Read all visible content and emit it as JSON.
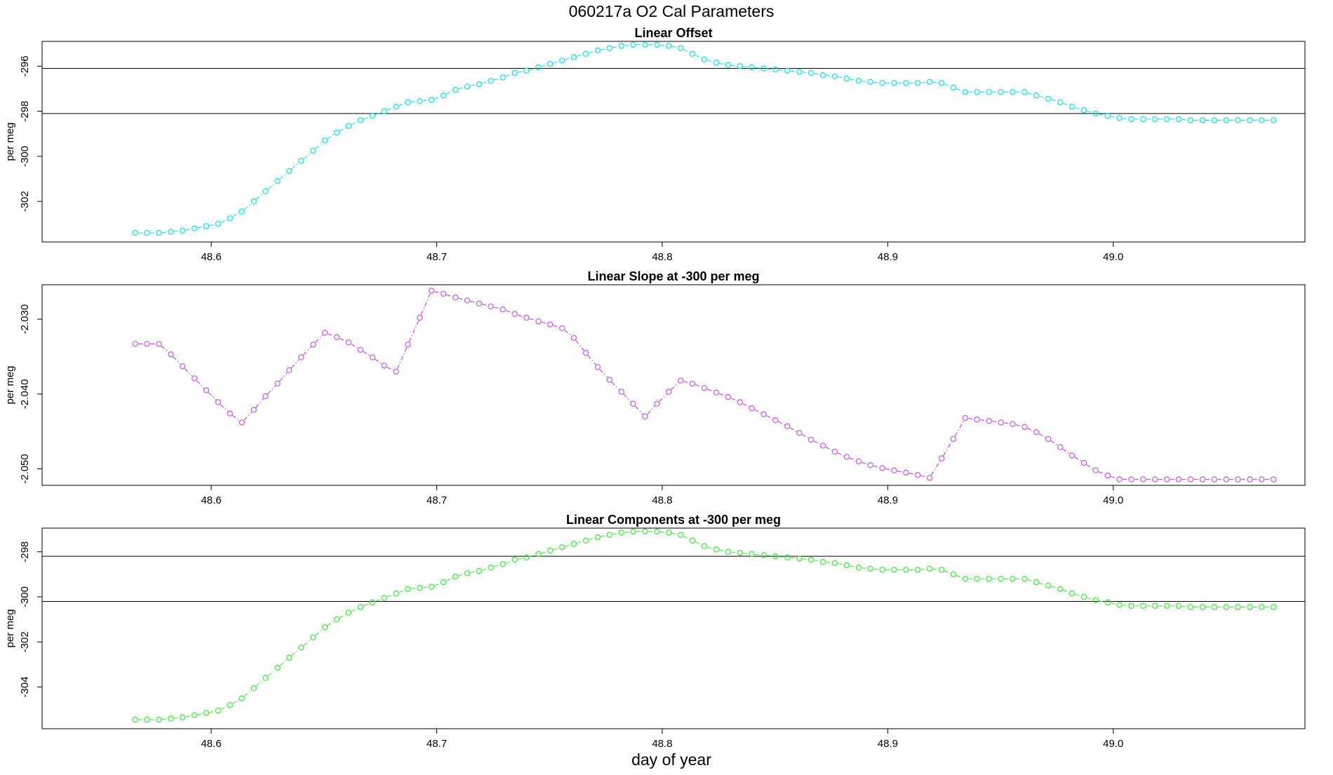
{
  "title": "060217a   O2 Cal Parameters",
  "xlabel": "day of year",
  "chart_data": [
    {
      "type": "scatter",
      "title": "Linear Offset",
      "ylabel": "per meg",
      "color": "#00e5ee",
      "connected": false,
      "xlim": [
        48.525,
        49.085
      ],
      "ylim": [
        -303.8,
        -294.9
      ],
      "xticks": [
        "48.6",
        "48.7",
        "48.8",
        "48.9",
        "49.0"
      ],
      "yticks": [
        "-296",
        "-298",
        "-300",
        "-302"
      ],
      "hlines": [
        -296.1,
        -298.1
      ],
      "x": [
        48.5663,
        48.5715,
        48.5768,
        48.5821,
        48.5873,
        48.5926,
        48.5978,
        48.6031,
        48.6083,
        48.6136,
        48.6189,
        48.6241,
        48.6294,
        48.6346,
        48.6399,
        48.6452,
        48.6504,
        48.6557,
        48.6609,
        48.6662,
        48.6715,
        48.6767,
        48.682,
        48.6872,
        48.6925,
        48.6977,
        48.703,
        48.7083,
        48.7135,
        48.7188,
        48.724,
        48.7293,
        48.7346,
        48.7398,
        48.7451,
        48.7503,
        48.7556,
        48.7608,
        48.7661,
        48.7714,
        48.7766,
        48.7819,
        48.7871,
        48.7924,
        48.7977,
        48.8029,
        48.8082,
        48.8134,
        48.8187,
        48.824,
        48.8292,
        48.8345,
        48.8397,
        48.845,
        48.8502,
        48.8555,
        48.8608,
        48.866,
        48.8713,
        48.8765,
        48.8818,
        48.8871,
        48.8923,
        48.8976,
        48.9028,
        48.9081,
        48.9133,
        48.9186,
        48.9239,
        48.9291,
        48.9344,
        48.9396,
        48.9449,
        48.9502,
        48.9554,
        48.9607,
        48.9659,
        48.9712,
        48.9765,
        48.9817,
        48.987,
        48.9922,
        48.9975,
        49.0027,
        49.008,
        49.0133,
        49.0185,
        49.0238,
        49.029,
        49.0343,
        49.0396,
        49.0448,
        49.0501,
        49.0553,
        49.0606,
        49.0658,
        49.0711
      ],
      "y": [
        -303.4,
        -303.4,
        -303.4,
        -303.35,
        -303.3,
        -303.2,
        -303.1,
        -303.0,
        -302.75,
        -302.45,
        -302.0,
        -301.55,
        -301.1,
        -300.65,
        -300.2,
        -299.75,
        -299.3,
        -298.95,
        -298.65,
        -298.4,
        -298.2,
        -298.0,
        -297.8,
        -297.6,
        -297.55,
        -297.5,
        -297.3,
        -297.05,
        -296.9,
        -296.8,
        -296.65,
        -296.5,
        -296.3,
        -296.2,
        -296.05,
        -295.9,
        -295.75,
        -295.6,
        -295.45,
        -295.3,
        -295.2,
        -295.1,
        -295.05,
        -295.05,
        -295.05,
        -295.1,
        -295.2,
        -295.45,
        -295.7,
        -295.85,
        -295.95,
        -296.0,
        -296.05,
        -296.1,
        -296.15,
        -296.2,
        -296.25,
        -296.3,
        -296.4,
        -296.45,
        -296.55,
        -296.65,
        -296.7,
        -296.75,
        -296.75,
        -296.75,
        -296.75,
        -296.7,
        -296.75,
        -296.95,
        -297.15,
        -297.15,
        -297.15,
        -297.15,
        -297.15,
        -297.15,
        -297.3,
        -297.45,
        -297.6,
        -297.8,
        -297.95,
        -298.1,
        -298.2,
        -298.3,
        -298.35,
        -298.35,
        -298.35,
        -298.35,
        -298.35,
        -298.4,
        -298.4,
        -298.4,
        -298.4,
        -298.4,
        -298.4,
        -298.4,
        -298.4
      ]
    },
    {
      "type": "line",
      "title": "Linear Slope at -300 per meg",
      "ylabel": "per meg",
      "color": "#cc55ee",
      "connected": true,
      "xlim": [
        48.525,
        49.085
      ],
      "ylim": [
        -2.0522,
        -2.0254
      ],
      "xticks": [
        "48.6",
        "48.7",
        "48.8",
        "48.9",
        "49.0"
      ],
      "yticks": [
        "-2.030",
        "-2.040",
        "-2.050"
      ],
      "hlines": [],
      "x": [
        48.5663,
        48.5715,
        48.5768,
        48.5821,
        48.5873,
        48.5926,
        48.5978,
        48.6031,
        48.6083,
        48.6136,
        48.6189,
        48.6241,
        48.6294,
        48.6346,
        48.6399,
        48.6452,
        48.6504,
        48.6557,
        48.6609,
        48.6662,
        48.6715,
        48.6767,
        48.682,
        48.6872,
        48.6925,
        48.6977,
        48.703,
        48.7083,
        48.7135,
        48.7188,
        48.724,
        48.7293,
        48.7346,
        48.7398,
        48.7451,
        48.7503,
        48.7556,
        48.7608,
        48.7661,
        48.7714,
        48.7766,
        48.7819,
        48.7871,
        48.7924,
        48.7977,
        48.8029,
        48.8082,
        48.8134,
        48.8187,
        48.824,
        48.8292,
        48.8345,
        48.8397,
        48.845,
        48.8502,
        48.8555,
        48.8608,
        48.866,
        48.8713,
        48.8765,
        48.8818,
        48.8871,
        48.8923,
        48.8976,
        48.9028,
        48.9081,
        48.9133,
        48.9186,
        48.9239,
        48.9291,
        48.9344,
        48.9396,
        48.9449,
        48.9502,
        48.9554,
        48.9607,
        48.9659,
        48.9712,
        48.9765,
        48.9817,
        48.987,
        48.9922,
        48.9975,
        49.0027,
        49.008,
        49.0133,
        49.0185,
        49.0238,
        49.029,
        49.0343,
        49.0396,
        49.0448,
        49.0501,
        49.0553,
        49.0606,
        49.0658,
        49.0711
      ],
      "y": [
        -2.0333,
        -2.0333,
        -2.0333,
        -2.0347,
        -2.0363,
        -2.0379,
        -2.0395,
        -2.0411,
        -2.0426,
        -2.0438,
        -2.0421,
        -2.0403,
        -2.0386,
        -2.0368,
        -2.0351,
        -2.0334,
        -2.0318,
        -2.0324,
        -2.0331,
        -2.0341,
        -2.0351,
        -2.0362,
        -2.037,
        -2.0334,
        -2.0298,
        -2.0262,
        -2.0266,
        -2.0271,
        -2.0275,
        -2.0279,
        -2.0283,
        -2.0287,
        -2.0293,
        -2.0298,
        -2.0303,
        -2.0307,
        -2.0312,
        -2.0325,
        -2.0345,
        -2.0364,
        -2.0381,
        -2.0397,
        -2.0413,
        -2.043,
        -2.0413,
        -2.0397,
        -2.0382,
        -2.0386,
        -2.0392,
        -2.0398,
        -2.0404,
        -2.0411,
        -2.0419,
        -2.0427,
        -2.0435,
        -2.0443,
        -2.0452,
        -2.0461,
        -2.0469,
        -2.0477,
        -2.0484,
        -2.049,
        -2.0495,
        -2.0499,
        -2.0502,
        -2.0505,
        -2.0508,
        -2.0512,
        -2.0486,
        -2.046,
        -2.0432,
        -2.0434,
        -2.0436,
        -2.0438,
        -2.044,
        -2.0444,
        -2.0451,
        -2.046,
        -2.0471,
        -2.0482,
        -2.0492,
        -2.0502,
        -2.0509,
        -2.0514,
        -2.0514,
        -2.0514,
        -2.0514,
        -2.0514,
        -2.0514,
        -2.0514,
        -2.0514,
        -2.0514,
        -2.0514,
        -2.0514,
        -2.0514,
        -2.0514,
        -2.0514
      ]
    },
    {
      "type": "scatter",
      "title": "Linear Components at -300 per meg",
      "ylabel": "per meg",
      "color": "#33ee33",
      "connected": false,
      "xlim": [
        48.525,
        49.085
      ],
      "ylim": [
        -305.85,
        -296.95
      ],
      "xticks": [
        "48.6",
        "48.7",
        "48.8",
        "48.9",
        "49.0"
      ],
      "yticks": [
        "-298",
        "-300",
        "-302",
        "-304"
      ],
      "hlines": [
        -298.2,
        -300.2
      ],
      "x": [
        48.5663,
        48.5715,
        48.5768,
        48.5821,
        48.5873,
        48.5926,
        48.5978,
        48.6031,
        48.6083,
        48.6136,
        48.6189,
        48.6241,
        48.6294,
        48.6346,
        48.6399,
        48.6452,
        48.6504,
        48.6557,
        48.6609,
        48.6662,
        48.6715,
        48.6767,
        48.682,
        48.6872,
        48.6925,
        48.6977,
        48.703,
        48.7083,
        48.7135,
        48.7188,
        48.724,
        48.7293,
        48.7346,
        48.7398,
        48.7451,
        48.7503,
        48.7556,
        48.7608,
        48.7661,
        48.7714,
        48.7766,
        48.7819,
        48.7871,
        48.7924,
        48.7977,
        48.8029,
        48.8082,
        48.8134,
        48.8187,
        48.824,
        48.8292,
        48.8345,
        48.8397,
        48.845,
        48.8502,
        48.8555,
        48.8608,
        48.866,
        48.8713,
        48.8765,
        48.8818,
        48.8871,
        48.8923,
        48.8976,
        48.9028,
        48.9081,
        48.9133,
        48.9186,
        48.9239,
        48.9291,
        48.9344,
        48.9396,
        48.9449,
        48.9502,
        48.9554,
        48.9607,
        48.9659,
        48.9712,
        48.9765,
        48.9817,
        48.987,
        48.9922,
        48.9975,
        49.0027,
        49.008,
        49.0133,
        49.0185,
        49.0238,
        49.029,
        49.0343,
        49.0396,
        49.0448,
        49.0501,
        49.0553,
        49.0606,
        49.0658,
        49.0711
      ],
      "y": [
        -305.45,
        -305.45,
        -305.45,
        -305.4,
        -305.35,
        -305.25,
        -305.15,
        -305.05,
        -304.8,
        -304.5,
        -304.05,
        -303.6,
        -303.15,
        -302.7,
        -302.25,
        -301.8,
        -301.35,
        -301.0,
        -300.7,
        -300.45,
        -300.25,
        -300.05,
        -299.85,
        -299.65,
        -299.6,
        -299.55,
        -299.35,
        -299.1,
        -298.95,
        -298.85,
        -298.7,
        -298.55,
        -298.35,
        -298.25,
        -298.1,
        -297.95,
        -297.8,
        -297.65,
        -297.5,
        -297.35,
        -297.25,
        -297.15,
        -297.1,
        -297.1,
        -297.1,
        -297.15,
        -297.25,
        -297.5,
        -297.75,
        -297.9,
        -298.0,
        -298.05,
        -298.1,
        -298.15,
        -298.2,
        -298.25,
        -298.3,
        -298.35,
        -298.45,
        -298.5,
        -298.6,
        -298.7,
        -298.75,
        -298.8,
        -298.8,
        -298.8,
        -298.8,
        -298.75,
        -298.8,
        -299.0,
        -299.2,
        -299.2,
        -299.2,
        -299.2,
        -299.2,
        -299.2,
        -299.35,
        -299.5,
        -299.65,
        -299.85,
        -300.0,
        -300.15,
        -300.25,
        -300.35,
        -300.4,
        -300.4,
        -300.4,
        -300.4,
        -300.4,
        -300.45,
        -300.45,
        -300.45,
        -300.45,
        -300.45,
        -300.45,
        -300.45,
        -300.45
      ]
    }
  ]
}
